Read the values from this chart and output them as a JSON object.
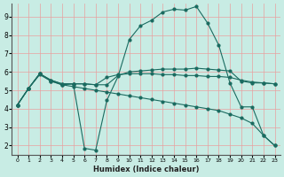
{
  "xlabel": "Humidex (Indice chaleur)",
  "bg_color": "#c8ece4",
  "line_color": "#1a6b60",
  "grid_color": "#e8a0a0",
  "xlim": [
    -0.5,
    23.5
  ],
  "ylim": [
    1.5,
    9.7
  ],
  "xticks": [
    0,
    1,
    2,
    3,
    4,
    5,
    6,
    7,
    8,
    9,
    10,
    11,
    12,
    13,
    14,
    15,
    16,
    17,
    18,
    19,
    20,
    21,
    22,
    23
  ],
  "yticks": [
    2,
    3,
    4,
    5,
    6,
    7,
    8,
    9
  ],
  "line_dip": {
    "x": [
      0,
      1,
      2,
      3,
      4,
      5,
      6,
      7,
      8,
      9,
      10,
      11,
      12,
      13,
      14,
      15,
      16,
      17,
      18,
      19,
      20,
      21,
      22,
      23
    ],
    "y": [
      4.2,
      5.1,
      5.9,
      5.5,
      5.3,
      5.35,
      1.85,
      1.75,
      4.45,
      5.75,
      7.75,
      8.5,
      8.8,
      9.25,
      9.4,
      9.35,
      9.55,
      8.65,
      7.45,
      5.4,
      4.1,
      4.1,
      2.55,
      2.0
    ]
  },
  "line_flat_top": {
    "x": [
      0,
      1,
      2,
      3,
      4,
      5,
      6,
      7,
      8,
      9,
      10,
      11,
      12,
      13,
      14,
      15,
      16,
      17,
      18,
      19,
      20,
      21,
      22,
      23
    ],
    "y": [
      4.2,
      5.1,
      5.9,
      5.55,
      5.35,
      5.35,
      5.35,
      5.3,
      5.3,
      5.8,
      6.0,
      6.05,
      6.1,
      6.15,
      6.15,
      6.15,
      6.2,
      6.15,
      6.1,
      6.05,
      5.5,
      5.4,
      5.4,
      5.35
    ]
  },
  "line_flat_mid": {
    "x": [
      0,
      1,
      2,
      3,
      4,
      5,
      6,
      7,
      8,
      9,
      10,
      11,
      12,
      13,
      14,
      15,
      16,
      17,
      18,
      19,
      20,
      21,
      22,
      23
    ],
    "y": [
      4.2,
      5.1,
      5.9,
      5.55,
      5.35,
      5.35,
      5.35,
      5.3,
      5.7,
      5.85,
      5.9,
      5.9,
      5.9,
      5.85,
      5.85,
      5.8,
      5.8,
      5.75,
      5.75,
      5.7,
      5.55,
      5.45,
      5.4,
      5.35
    ]
  },
  "line_diagonal": {
    "x": [
      0,
      1,
      2,
      3,
      4,
      5,
      6,
      7,
      8,
      9,
      10,
      11,
      12,
      13,
      14,
      15,
      16,
      17,
      18,
      19,
      20,
      21,
      22,
      23
    ],
    "y": [
      4.2,
      5.1,
      5.85,
      5.5,
      5.3,
      5.2,
      5.1,
      5.0,
      4.9,
      4.8,
      4.7,
      4.6,
      4.5,
      4.4,
      4.3,
      4.2,
      4.1,
      4.0,
      3.9,
      3.7,
      3.5,
      3.2,
      2.55,
      2.0
    ]
  }
}
